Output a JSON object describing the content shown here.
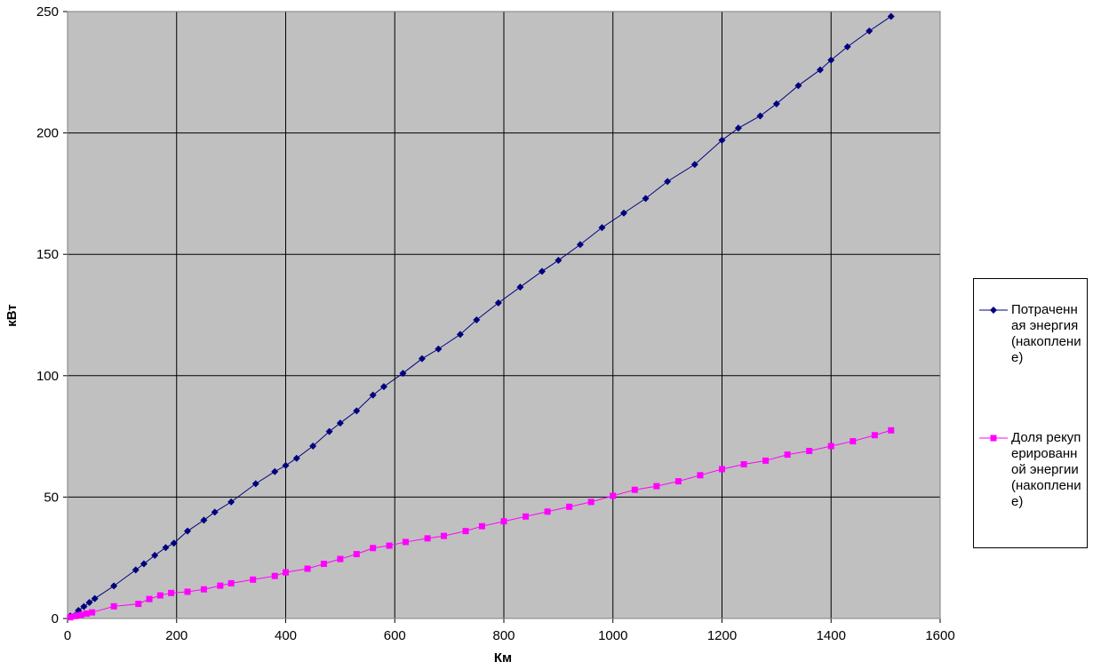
{
  "chart_data": {
    "type": "scatter-line",
    "x_label": "Км",
    "y_label": "кВт",
    "xlim": [
      0,
      1600
    ],
    "xticks": [
      0,
      200,
      400,
      600,
      800,
      1000,
      1200,
      1400,
      1600
    ],
    "ylim": [
      0,
      250
    ],
    "yticks": [
      0,
      50,
      100,
      150,
      200,
      250
    ],
    "grid": true,
    "legend": "right",
    "series": [
      {
        "name": "Потраченная энергия (накопление)",
        "color": "#000080",
        "marker": "diamond",
        "x": [
          5,
          20,
          30,
          40,
          50,
          85,
          125,
          140,
          160,
          180,
          195,
          220,
          250,
          270,
          300,
          345,
          380,
          400,
          420,
          450,
          480,
          500,
          530,
          560,
          580,
          615,
          650,
          680,
          720,
          750,
          790,
          830,
          870,
          900,
          940,
          980,
          1020,
          1060,
          1100,
          1150,
          1200,
          1230,
          1270,
          1300,
          1340,
          1380,
          1400,
          1430,
          1470,
          1510
        ],
        "values": [
          1,
          3.3,
          4.9,
          6.6,
          8.2,
          13.4,
          20,
          22.5,
          26,
          29.2,
          31,
          36,
          40.5,
          43.8,
          48,
          55.5,
          60.5,
          63,
          66,
          71,
          77,
          80.5,
          85.5,
          92,
          95.5,
          101,
          107,
          111,
          117,
          123,
          130,
          136.5,
          143,
          147.5,
          154,
          161,
          167,
          173,
          180,
          187,
          197,
          202,
          207,
          212,
          219.5,
          226,
          230,
          235.5,
          242,
          248
        ]
      },
      {
        "name": "Доля рекуперированной энергии (накопление)",
        "color": "#ff00ff",
        "marker": "square",
        "x": [
          5,
          15,
          25,
          35,
          45,
          85,
          130,
          150,
          170,
          190,
          220,
          250,
          280,
          300,
          340,
          380,
          400,
          440,
          470,
          500,
          530,
          560,
          590,
          620,
          660,
          690,
          730,
          760,
          800,
          840,
          880,
          920,
          960,
          1000,
          1040,
          1080,
          1120,
          1160,
          1200,
          1240,
          1280,
          1320,
          1360,
          1400,
          1440,
          1480,
          1510
        ],
        "values": [
          0.5,
          1,
          1.5,
          2,
          2.5,
          5,
          6,
          8,
          9.5,
          10.5,
          11,
          12,
          13.5,
          14.5,
          16,
          17.5,
          19,
          20.5,
          22.5,
          24.5,
          26.5,
          29,
          30,
          31.5,
          33,
          34,
          36,
          38,
          40,
          42,
          44,
          46,
          48,
          50.5,
          53,
          54.5,
          56.5,
          59,
          61.5,
          63.5,
          65,
          67.5,
          69,
          71,
          73,
          75.5,
          77.5
        ]
      }
    ]
  }
}
